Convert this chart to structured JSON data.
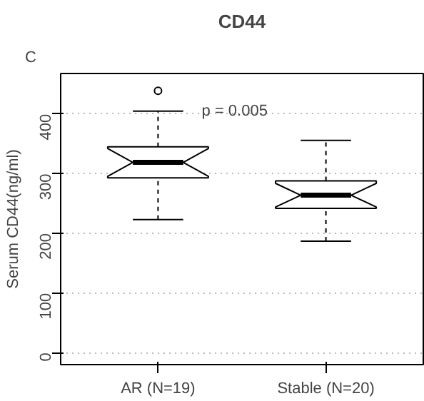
{
  "chart_data": {
    "type": "box",
    "title": "CD44",
    "ylabel": "Serum CD44(ng/ml)",
    "categories": [
      "AR (N=19)",
      "Stable (N=20)"
    ],
    "boxes": [
      {
        "low": 223,
        "q1": 293,
        "median": 319,
        "q3": 345,
        "high": 405,
        "outliers": [
          439
        ]
      },
      {
        "low": 187,
        "q1": 242,
        "median": 264,
        "q3": 288,
        "high": 356
      }
    ],
    "ylim": [
      -20,
      468
    ],
    "yticks": [
      0,
      100,
      200,
      300,
      400
    ],
    "grid": "y",
    "annotations": [
      "C",
      "p = 0.005"
    ]
  }
}
